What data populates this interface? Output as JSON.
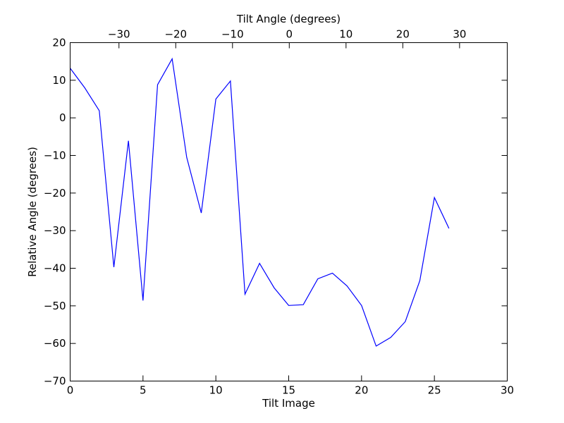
{
  "chart_data": {
    "type": "line",
    "xlabel": "Tilt Image",
    "ylabel": "Relative Angle (degrees)",
    "top_xlabel": "Tilt Angle (degrees)",
    "xlim": [
      0,
      30
    ],
    "ylim": [
      -70,
      20
    ],
    "top_xlim": [
      -38.6,
      38.4
    ],
    "x_ticks": [
      0,
      5,
      10,
      15,
      20,
      25,
      30
    ],
    "y_ticks": [
      -70,
      -60,
      -50,
      -40,
      -30,
      -20,
      -10,
      0,
      10,
      20
    ],
    "top_x_ticks": [
      -30,
      -20,
      -10,
      0,
      10,
      20,
      30
    ],
    "x_tick_labels": [
      "0",
      "5",
      "10",
      "15",
      "20",
      "25",
      "30"
    ],
    "y_tick_labels": [
      "−70",
      "−60",
      "−50",
      "−40",
      "−30",
      "−20",
      "−10",
      "0",
      "10",
      "20"
    ],
    "top_x_tick_labels": [
      "−30",
      "−20",
      "−10",
      "0",
      "10",
      "20",
      "30"
    ],
    "grid": false,
    "series": [
      {
        "color": "#0000ff",
        "x": [
          0,
          1,
          2,
          3,
          4,
          5,
          6,
          7,
          8,
          9,
          10,
          11,
          12,
          13,
          14,
          15,
          16,
          17,
          18,
          19,
          20,
          21,
          22,
          23,
          24,
          25,
          26
        ],
        "y": [
          13.2,
          8,
          1.9,
          -39.7,
          -6.1,
          -48.6,
          8.8,
          15.7,
          -10.5,
          -25.3,
          5,
          9.8,
          -46.9,
          -38.7,
          -45.2,
          -49.9,
          -49.7,
          -42.8,
          -41.3,
          -44.7,
          -49.9,
          -60.7,
          -58.4,
          -54.2,
          -43.3,
          -21.2,
          -29.4
        ]
      }
    ]
  }
}
